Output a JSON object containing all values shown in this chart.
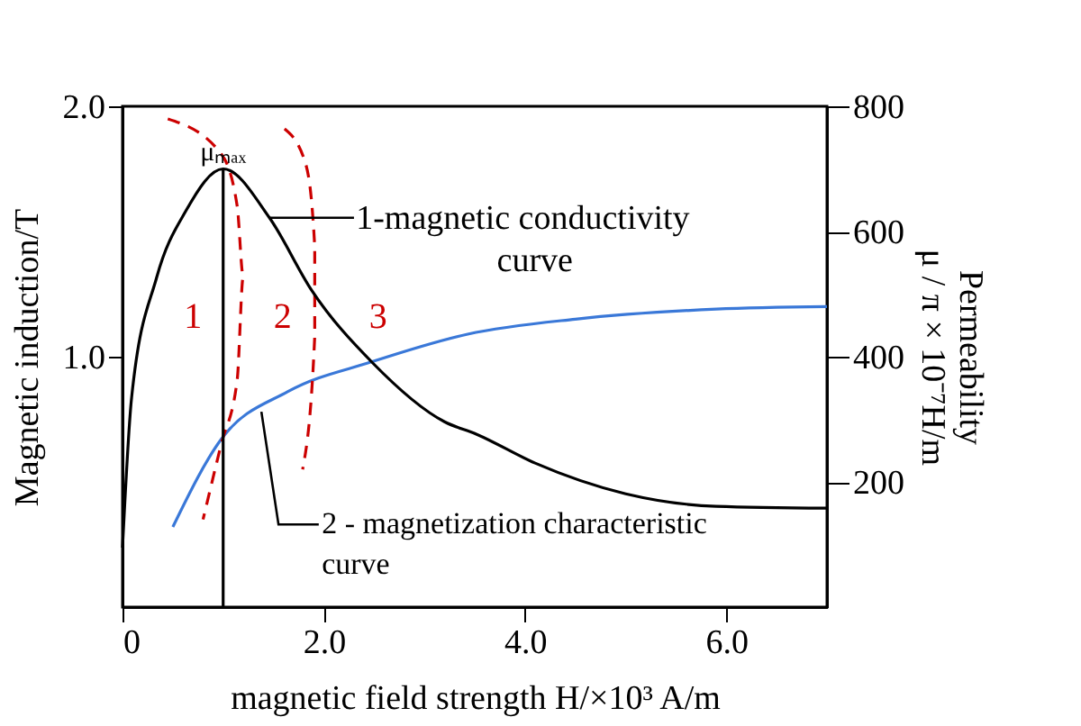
{
  "chart_data": {
    "type": "line",
    "xlabel": "magnetic field strength H/×10³ A/m",
    "ylabel": "Magnetic induction/T",
    "y2label": "Permeability\nμ / π × 10⁻⁷H/m",
    "xlim": [
      0,
      7
    ],
    "ylim": [
      0,
      2.0
    ],
    "y2lim": [
      0,
      800
    ],
    "xticks": [
      0,
      {
        "value": 2,
        "label": "2.0"
      },
      {
        "value": 4,
        "label": "4.0"
      },
      {
        "value": 6,
        "label": "6.0"
      }
    ],
    "yticks": [
      {
        "value": 1,
        "label": "1.0"
      },
      {
        "value": 2,
        "label": "2.0"
      }
    ],
    "y2ticks": [
      200,
      400,
      600,
      800
    ],
    "grid": false,
    "marker": "none",
    "series": [
      {
        "color": "#000000",
        "axis": "y2",
        "x": [
          0,
          0.09,
          0.34,
          0.63,
          1.0,
          1.46,
          1.88,
          2.48,
          3.2,
          3.52,
          4.1,
          5.0,
          5.9,
          7.0
        ],
        "values": [
          95,
          334,
          527,
          633,
          700,
          622,
          506,
          391,
          296,
          276,
          230,
          181,
          161,
          158
        ]
      },
      {
        "color": "#3a78d8",
        "x": [
          0.5,
          0.98,
          1.64,
          2.48,
          3.43,
          4.5,
          5.9,
          7.0
        ],
        "values": [
          0.32,
          0.67,
          0.86,
          0.98,
          1.09,
          1.15,
          1.19,
          1.2
        ]
      },
      {
        "color": "#cc0000",
        "line_style": "dashed",
        "x": [
          0.45,
          0.98,
          1.14,
          1.2,
          1.14,
          0.98,
          0.8
        ],
        "values": [
          1.95,
          1.81,
          1.6,
          1.32,
          0.91,
          0.65,
          0.35
        ]
      },
      {
        "color": "#cc0000",
        "line_style": "dashed",
        "x": [
          1.61,
          1.82,
          1.91,
          1.91,
          1.79
        ],
        "values": [
          1.91,
          1.77,
          1.44,
          1.08,
          0.55
        ]
      },
      {
        "color": "#000000",
        "x": [
          1.0,
          1.0
        ],
        "values": [
          0,
          1.75
        ]
      }
    ],
    "annotations": [
      {
        "text": "μₘₐₓ",
        "x": 1.0,
        "y": 1.75
      },
      "1",
      "2",
      "3",
      {
        "text": "1-magnetic conductivity curve",
        "x": 1.46,
        "y": 1.555
      },
      {
        "text": "2 - magnetization characteristic curve",
        "x": 1.38,
        "y": 0.78
      }
    ]
  }
}
